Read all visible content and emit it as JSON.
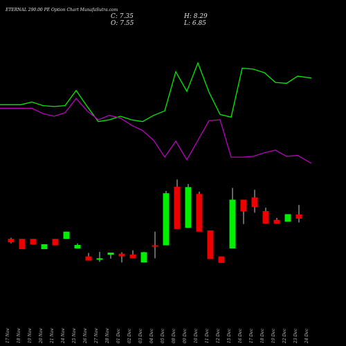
{
  "chart_data": {
    "type": "candlestick",
    "title": "ETERNAL 290.00 PE Option Chart MunafaSutra.com",
    "ohlc_readout": {
      "close": "C: 7.35",
      "open": "O: 7.55",
      "high": "H: 8.29",
      "low": "L: 6.85"
    },
    "categories": [
      "17 Nov",
      "18 Nov",
      "19 Nov",
      "20 Nov",
      "21 Nov",
      "24 Nov",
      "25 Nov",
      "26 Nov",
      "27 Nov",
      "28 Nov",
      "01 Dec",
      "02 Dec",
      "03 Dec",
      "04 Dec",
      "05 Dec",
      "08 Dec",
      "09 Dec",
      "10 Dec",
      "11 Dec",
      "12 Dec",
      "15 Dec",
      "16 Dec",
      "17 Dec",
      "18 Dec",
      "19 Dec",
      "22 Dec",
      "23 Dec",
      "24 Dec"
    ],
    "candles": [
      {
        "o": 13.6,
        "h": 13.9,
        "l": 12.4,
        "c": 12.7
      },
      {
        "o": 13.6,
        "h": 13.6,
        "l": 10.9,
        "c": 10.9
      },
      {
        "o": 13.6,
        "h": 13.6,
        "l": 12.1,
        "c": 12.1
      },
      {
        "o": 10.9,
        "h": 12.2,
        "l": 10.9,
        "c": 12.2
      },
      {
        "o": 13.6,
        "h": 13.6,
        "l": 11.9,
        "c": 11.9
      },
      {
        "o": 13.6,
        "h": 15.5,
        "l": 13.6,
        "c": 15.5
      },
      {
        "o": 11.1,
        "h": 12.4,
        "l": 11.1,
        "c": 12.0
      },
      {
        "o": 9.0,
        "h": 9.9,
        "l": 7.9,
        "c": 7.9
      },
      {
        "o": 8.1,
        "h": 10.2,
        "l": 7.6,
        "c": 8.5
      },
      {
        "o": 9.4,
        "h": 10.0,
        "l": 8.4,
        "c": 10.0
      },
      {
        "o": 9.7,
        "h": 10.1,
        "l": 7.4,
        "c": 9.0
      },
      {
        "o": 9.5,
        "h": 10.6,
        "l": 8.5,
        "c": 8.5
      },
      {
        "o": 7.4,
        "h": 10.2,
        "l": 7.4,
        "c": 10.1
      },
      {
        "o": 11.9,
        "h": 15.5,
        "l": 8.5,
        "c": 11.6
      },
      {
        "o": 11.9,
        "h": 26.2,
        "l": 11.9,
        "c": 25.6
      },
      {
        "o": 27.3,
        "h": 29.2,
        "l": 16.2,
        "c": 16.2
      },
      {
        "o": 16.5,
        "h": 28.0,
        "l": 16.5,
        "c": 27.2
      },
      {
        "o": 25.4,
        "h": 26.0,
        "l": 15.5,
        "c": 15.5
      },
      {
        "o": 15.8,
        "h": 15.8,
        "l": 8.3,
        "c": 8.3
      },
      {
        "o": 9.0,
        "h": 9.0,
        "l": 7.3,
        "c": 7.3
      },
      {
        "o": 11.1,
        "h": 27.0,
        "l": 11.1,
        "c": 23.9
      },
      {
        "o": 23.9,
        "h": 23.9,
        "l": 17.5,
        "c": 20.8
      },
      {
        "o": 24.5,
        "h": 26.5,
        "l": 20.5,
        "c": 22.0
      },
      {
        "o": 20.9,
        "h": 21.8,
        "l": 17.6,
        "c": 17.6
      },
      {
        "o": 18.6,
        "h": 19.1,
        "l": 17.6,
        "c": 17.6
      },
      {
        "o": 18.1,
        "h": 20.1,
        "l": 18.1,
        "c": 20.1
      },
      {
        "o": 20.0,
        "h": 22.5,
        "l": 17.9,
        "c": 18.9
      }
    ],
    "candle_x_index": [
      0,
      1,
      2,
      3,
      4,
      5,
      6,
      7,
      8,
      9,
      10,
      11,
      12,
      13,
      14,
      15,
      16,
      17,
      18,
      19,
      20,
      21,
      22,
      23,
      24,
      25,
      26
    ],
    "upper_line": {
      "color": "#00ee00",
      "values": [
        69,
        69,
        72,
        68,
        67,
        68,
        85,
        67,
        50,
        52,
        56,
        52,
        50,
        57,
        62,
        106,
        84,
        116,
        83,
        58,
        55,
        110,
        109,
        105,
        94,
        93,
        101,
        99
      ]
    },
    "lower_line": {
      "color": "#bb00bb",
      "values": [
        65,
        65,
        65,
        59,
        56,
        60,
        76,
        62,
        52,
        57,
        54,
        46,
        40,
        29,
        10,
        28,
        7,
        29,
        51,
        52,
        10,
        10,
        11,
        15,
        18,
        11,
        12,
        3
      ]
    },
    "colors": {
      "up": "#00ee00",
      "down": "#ee0000",
      "wick": "#cccccc",
      "background": "#000000"
    }
  }
}
